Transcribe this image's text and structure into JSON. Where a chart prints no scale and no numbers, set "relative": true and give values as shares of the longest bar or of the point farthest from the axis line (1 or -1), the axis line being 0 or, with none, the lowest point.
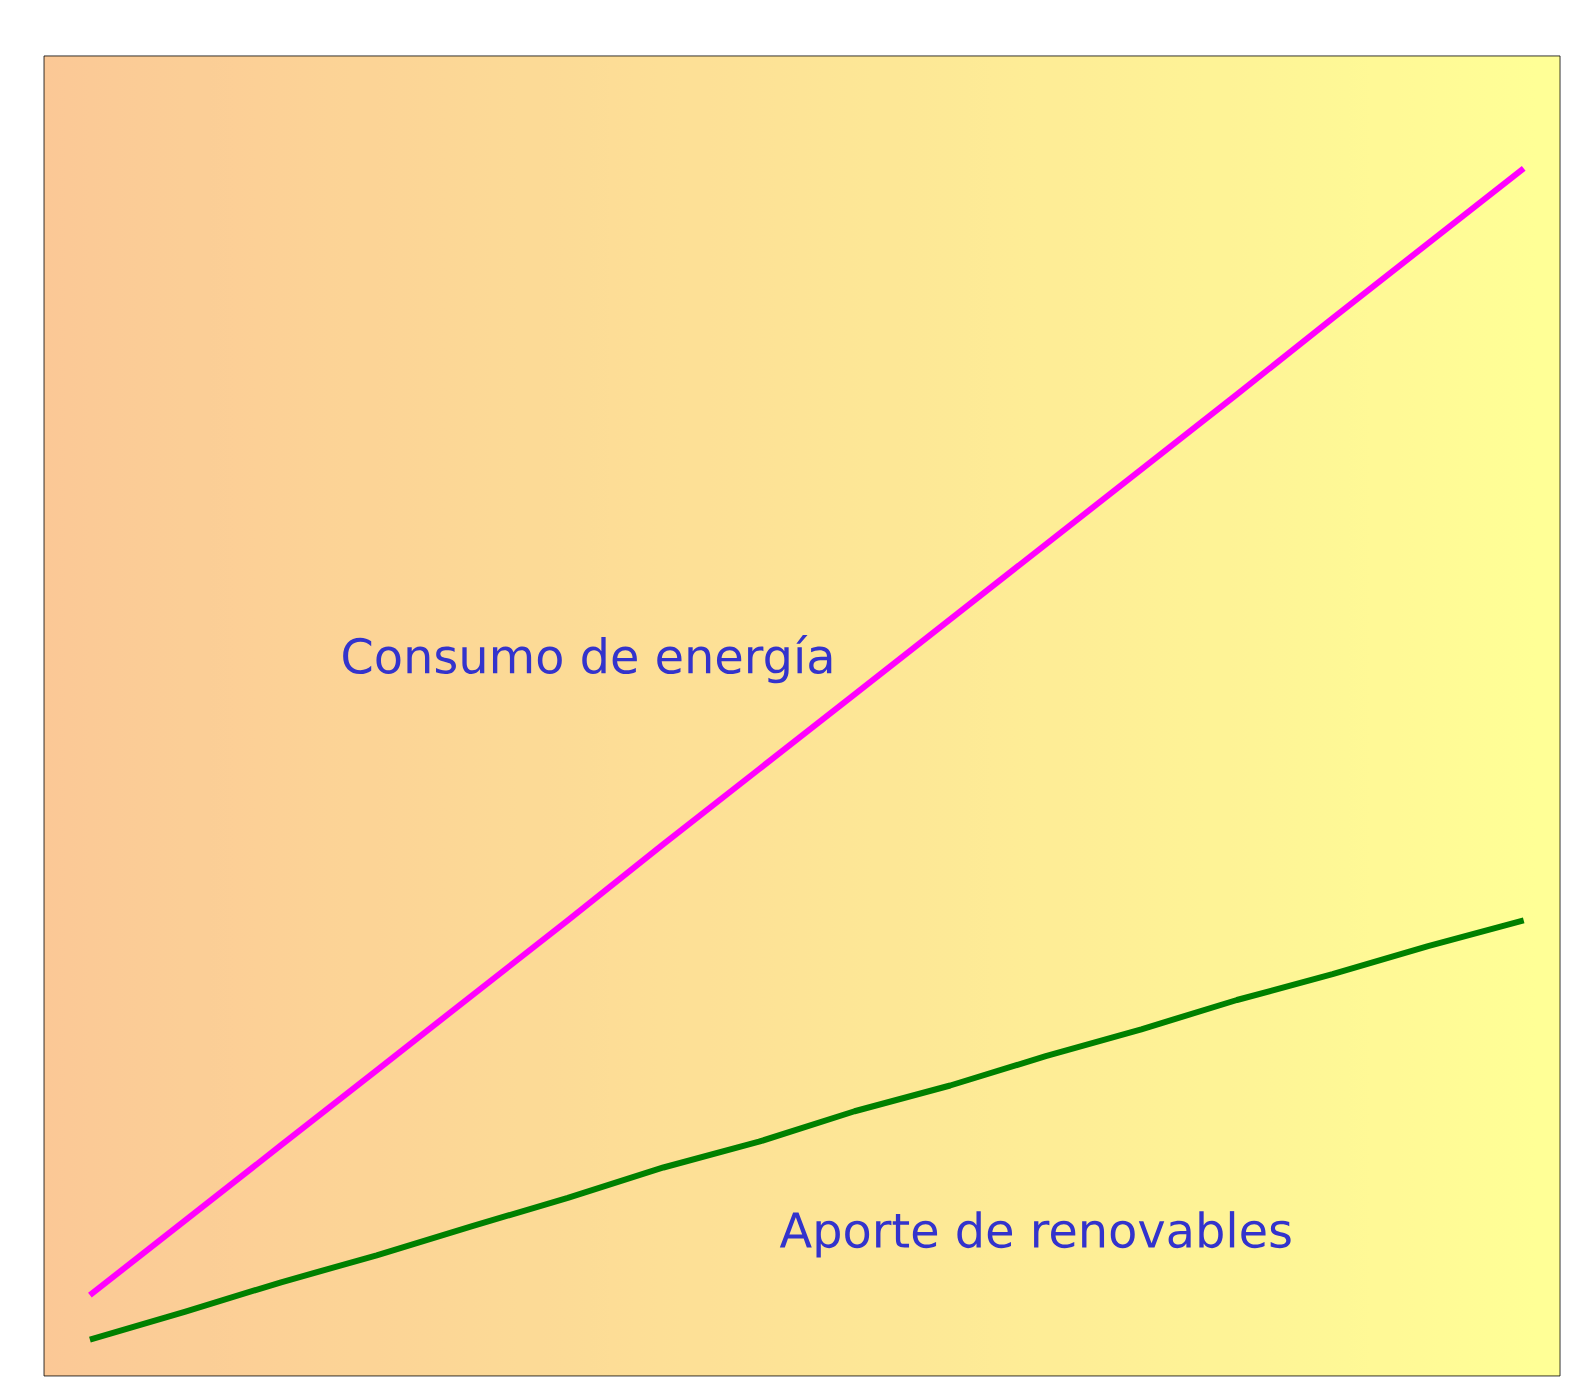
{
  "chart_data": {
    "type": "line",
    "relative": true,
    "categories": [
      null,
      null,
      null,
      null,
      null,
      null,
      null,
      null,
      null,
      null,
      null,
      null,
      null,
      null,
      null,
      null
    ],
    "series": [
      {
        "name": "Consumo de energía",
        "color": "#ff00ff",
        "values": [
          0.038,
          0.102,
          0.166,
          0.23,
          0.294,
          0.358,
          0.423,
          0.487,
          0.551,
          0.615,
          0.679,
          0.743,
          0.807,
          0.872,
          0.936,
          1.0
        ]
      },
      {
        "name": "Aporte de renovables",
        "color": "#008000",
        "values": [
          0,
          0.024,
          0.049,
          0.072,
          0.097,
          0.121,
          0.147,
          0.169,
          0.195,
          0.217,
          0.242,
          0.265,
          0.29,
          0.312,
          0.336,
          0.358
        ]
      }
    ]
  }
}
